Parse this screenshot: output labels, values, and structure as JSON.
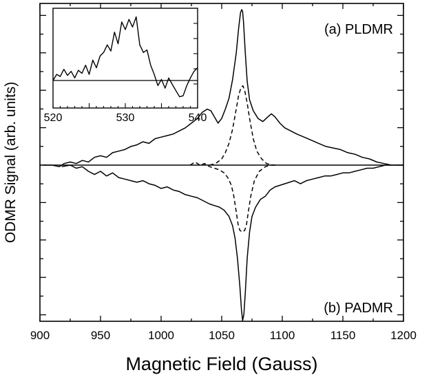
{
  "chart_data": [
    {
      "type": "line",
      "xlabel": "Magnetic Field (Gauss)",
      "ylabel": "ODMR Signal (arb. units)",
      "xlim": [
        900,
        1200
      ],
      "ylim": [
        -1,
        1
      ],
      "x_ticks": [
        "900",
        "950",
        "1000",
        "1050",
        "1100",
        "1150",
        "1200"
      ],
      "annotations": [
        "(a) PLDMR",
        "(b) PADMR"
      ],
      "grid": false,
      "series": [
        {
          "style": "solid",
          "x": [
            903,
            910,
            916,
            920,
            925,
            930,
            935,
            940,
            945,
            950,
            955,
            960,
            965,
            970,
            975,
            980,
            985,
            990,
            995,
            1000,
            1005,
            1010,
            1015,
            1020,
            1025,
            1030,
            1034,
            1038,
            1041,
            1044,
            1047,
            1050,
            1053,
            1056,
            1059,
            1062,
            1064,
            1065.5,
            1066.5,
            1067.2,
            1068,
            1069.5,
            1071,
            1073,
            1076,
            1080,
            1084,
            1088,
            1091,
            1094,
            1098,
            1102,
            1107,
            1112,
            1118,
            1124,
            1130,
            1136,
            1142,
            1148,
            1154,
            1160,
            1166,
            1172,
            1178,
            1184,
            1190,
            1196,
            1200
          ],
          "y": [
            0.0,
            0.0,
            -0.01,
            0.01,
            0.02,
            0.01,
            0.03,
            0.02,
            0.05,
            0.06,
            0.05,
            0.08,
            0.09,
            0.1,
            0.12,
            0.13,
            0.15,
            0.14,
            0.17,
            0.18,
            0.19,
            0.2,
            0.22,
            0.24,
            0.27,
            0.3,
            0.34,
            0.36,
            0.35,
            0.31,
            0.27,
            0.3,
            0.36,
            0.43,
            0.55,
            0.72,
            0.88,
            0.98,
            1.0,
            0.99,
            0.92,
            0.72,
            0.54,
            0.42,
            0.35,
            0.3,
            0.28,
            0.31,
            0.33,
            0.31,
            0.27,
            0.24,
            0.22,
            0.2,
            0.18,
            0.16,
            0.14,
            0.12,
            0.11,
            0.1,
            0.08,
            0.07,
            0.05,
            0.04,
            0.02,
            0.01,
            0.0,
            0.0,
            0.0
          ]
        },
        {
          "style": "dashed",
          "x": [
            1040,
            1045,
            1050,
            1053,
            1056,
            1059,
            1062,
            1064,
            1066,
            1067.5,
            1069,
            1071,
            1073,
            1076,
            1079,
            1083,
            1087,
            1092,
            1096
          ],
          "y": [
            0.0,
            0.01,
            0.04,
            0.08,
            0.14,
            0.23,
            0.36,
            0.45,
            0.5,
            0.51,
            0.48,
            0.4,
            0.3,
            0.17,
            0.09,
            0.04,
            0.01,
            0.0,
            0.0
          ]
        },
        {
          "style": "solid",
          "x": [
            918,
            925,
            930,
            935,
            940,
            945,
            950,
            955,
            960,
            965,
            970,
            975,
            980,
            985,
            990,
            995,
            1000,
            1005,
            1010,
            1015,
            1020,
            1025,
            1030,
            1035,
            1040,
            1044,
            1048,
            1052,
            1056,
            1059,
            1061,
            1063,
            1065,
            1066.3,
            1067.3,
            1068.3,
            1069.5,
            1071,
            1073,
            1075,
            1078,
            1082,
            1086,
            1090,
            1094,
            1098,
            1102,
            1106,
            1110,
            1115,
            1120,
            1125,
            1130,
            1135,
            1140,
            1145,
            1150,
            1155,
            1160,
            1165,
            1170,
            1175,
            1180,
            1185,
            1190
          ],
          "y": [
            -0.01,
            0.0,
            -0.02,
            -0.01,
            -0.04,
            -0.06,
            -0.04,
            -0.07,
            -0.05,
            -0.08,
            -0.09,
            -0.1,
            -0.11,
            -0.1,
            -0.12,
            -0.13,
            -0.15,
            -0.14,
            -0.16,
            -0.17,
            -0.19,
            -0.2,
            -0.21,
            -0.23,
            -0.25,
            -0.26,
            -0.27,
            -0.29,
            -0.33,
            -0.39,
            -0.47,
            -0.6,
            -0.78,
            -0.93,
            -1.0,
            -0.96,
            -0.82,
            -0.6,
            -0.43,
            -0.33,
            -0.27,
            -0.22,
            -0.2,
            -0.16,
            -0.14,
            -0.13,
            -0.12,
            -0.11,
            -0.1,
            -0.12,
            -0.1,
            -0.09,
            -0.08,
            -0.07,
            -0.07,
            -0.06,
            -0.05,
            -0.05,
            -0.04,
            -0.03,
            -0.02,
            -0.02,
            -0.01,
            0.0,
            0.0
          ]
        },
        {
          "style": "dashed",
          "x": [
            1024,
            1028,
            1032,
            1036,
            1040,
            1044,
            1048,
            1052,
            1055,
            1058,
            1060,
            1062,
            1063.5,
            1065,
            1067,
            1069,
            1070.5,
            1072,
            1074,
            1077,
            1081,
            1086,
            1091,
            1096
          ],
          "y": [
            0.0,
            0.02,
            0.0,
            0.01,
            -0.01,
            -0.02,
            -0.03,
            -0.05,
            -0.08,
            -0.13,
            -0.2,
            -0.3,
            -0.38,
            -0.42,
            -0.43,
            -0.42,
            -0.38,
            -0.3,
            -0.2,
            -0.1,
            -0.04,
            -0.01,
            0.0,
            0.0
          ]
        }
      ]
    },
    {
      "type": "line",
      "xlim": [
        520,
        540
      ],
      "x_ticks": [
        "520",
        "530",
        "540"
      ],
      "grid": false,
      "series": [
        {
          "style": "solid",
          "x": [
            520,
            520.5,
            521,
            521.5,
            522,
            522.5,
            523,
            523.5,
            524,
            524.5,
            525,
            525.5,
            526,
            526.5,
            527,
            527.5,
            528,
            528.5,
            529,
            529.5,
            530,
            530.5,
            531,
            531.5,
            532,
            532.5,
            533,
            533.5,
            534,
            534.5,
            535,
            535.5,
            536,
            536.5,
            537,
            537.5,
            538,
            538.5,
            539,
            539.5,
            540
          ],
          "y": [
            0.0,
            0.12,
            0.08,
            0.22,
            0.1,
            0.18,
            0.05,
            0.2,
            0.14,
            0.3,
            0.12,
            0.4,
            0.25,
            0.48,
            0.55,
            0.7,
            0.58,
            0.95,
            0.72,
            1.15,
            1.0,
            1.2,
            1.05,
            1.25,
            0.7,
            0.55,
            0.6,
            0.3,
            0.12,
            -0.1,
            0.02,
            -0.15,
            0.05,
            -0.08,
            -0.2,
            -0.32,
            -0.3,
            -0.1,
            0.05,
            0.18,
            0.25
          ]
        }
      ]
    }
  ]
}
